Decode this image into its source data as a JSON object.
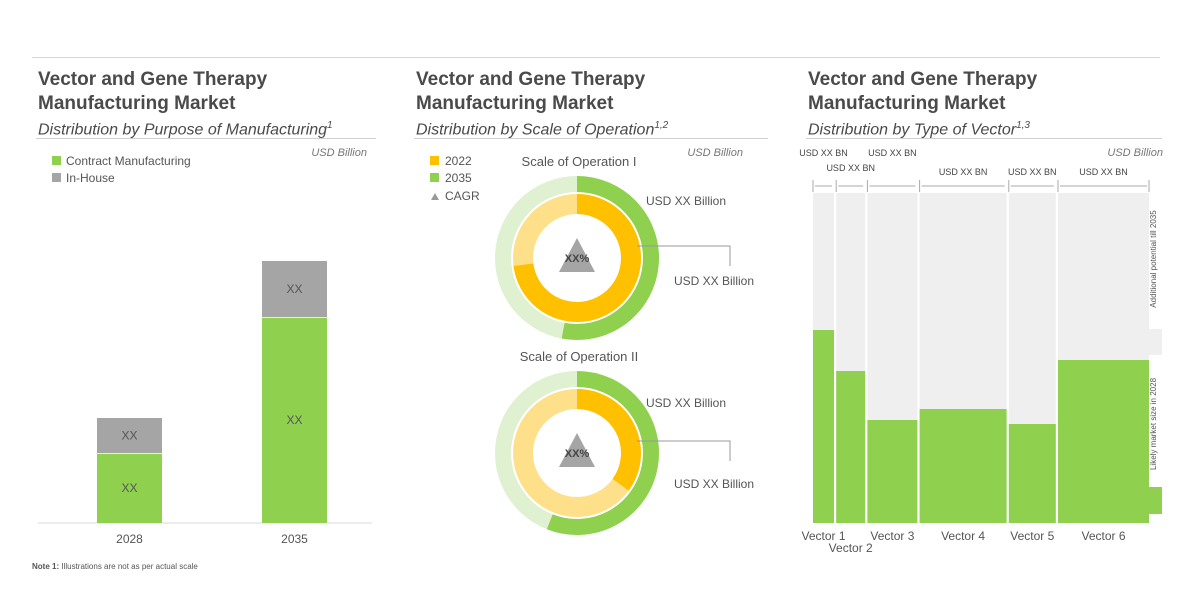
{
  "colors": {
    "green": "#8fd14f",
    "gray": "#a5a5a5",
    "orange": "#ffc000",
    "light_orange": "#ffe08a",
    "light_green": "#dff1d0",
    "background_band": "#efefef"
  },
  "note": {
    "label": "Note 1:",
    "text": "Illustrations are not as per actual scale"
  },
  "chart_data": [
    {
      "type": "bar",
      "title": "Vector and Gene Therapy Manufacturing Market",
      "subtitle": "Distribution by Purpose of Manufacturing",
      "subtitle_sup": "1",
      "unit": "USD Billion",
      "categories": [
        "2028",
        "2035"
      ],
      "series": [
        {
          "name": "Contract Manufacturing",
          "values": [
            70,
            206
          ],
          "labels": [
            "XX",
            "XX"
          ]
        },
        {
          "name": "In-House",
          "values": [
            35,
            56
          ],
          "labels": [
            "XX",
            "XX"
          ]
        }
      ],
      "legend": [
        "Contract Manufacturing",
        "In-House"
      ],
      "ylim": [
        0,
        270
      ]
    },
    {
      "type": "pie",
      "title": "Vector and Gene Therapy Manufacturing Market",
      "subtitle": "Distribution by Scale of Operation",
      "subtitle_sup": "1,2",
      "unit": "USD Billion",
      "legend": [
        "2022",
        "2035",
        "CAGR"
      ],
      "donuts": [
        {
          "name": "Scale of Operation I",
          "inner_2022_share": 0.73,
          "outer_2035_share": 0.53,
          "cagr_label": "XX%",
          "label_2035": "USD XX Billion",
          "label_2022": "USD XX Billion"
        },
        {
          "name": "Scale of Operation II",
          "inner_2022_share": 0.35,
          "outer_2035_share": 0.56,
          "cagr_label": "XX%",
          "label_2035": "USD XX Billion",
          "label_2022": "USD XX Billion"
        }
      ]
    },
    {
      "type": "bar",
      "title": "Vector and Gene Therapy Manufacturing Market",
      "subtitle": "Distribution by Type of Vector",
      "subtitle_sup": "1,3",
      "unit": "USD Billion",
      "categories": [
        "Vector 1",
        "Vector 2",
        "Vector 3",
        "Vector 4",
        "Vector 5",
        "Vector 6"
      ],
      "values": [
        193,
        152,
        103,
        114,
        99,
        163
      ],
      "potential_total": 330,
      "widths": [
        21,
        29,
        50,
        87,
        47,
        91
      ],
      "top_labels": [
        "USD XX BN",
        "USD XX BN",
        "USD XX BN",
        "USD XX BN",
        "USD XX BN",
        "USD XX BN"
      ],
      "side_labels": {
        "potential": "Additional potential till 2035",
        "likely": "Likely market size in 2028"
      }
    }
  ]
}
